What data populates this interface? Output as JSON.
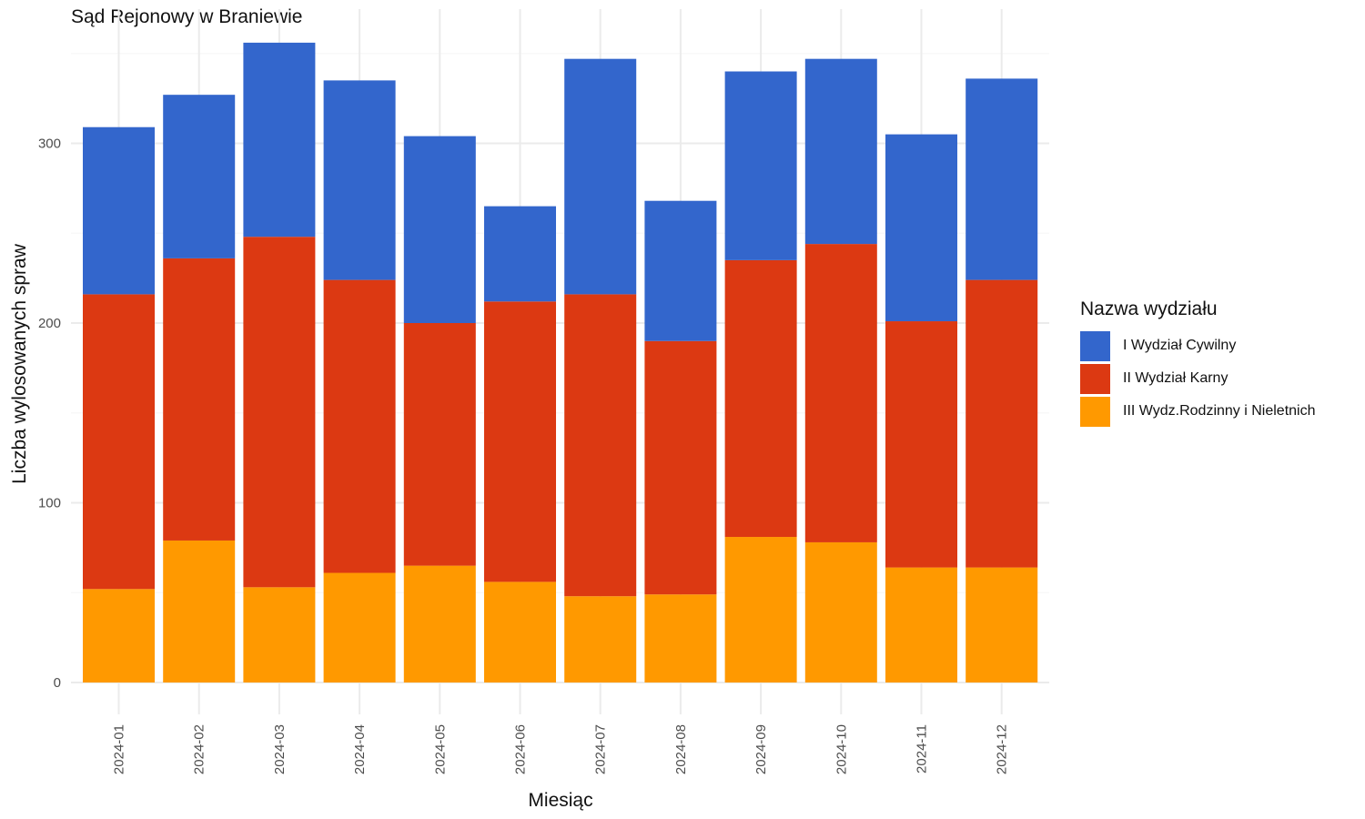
{
  "chart_data": {
    "type": "bar",
    "stacked": true,
    "title": "Sąd Rejonowy w Braniewie",
    "xlabel": "Miesiąc",
    "ylabel": "Liczba wylosowanych spraw",
    "ylim": [
      0,
      375
    ],
    "yticks": [
      0,
      100,
      200,
      300
    ],
    "grid": true,
    "legend_position": "right",
    "legend_title": "Nazwa wydziału",
    "categories": [
      "2024-01",
      "2024-02",
      "2024-03",
      "2024-04",
      "2024-05",
      "2024-06",
      "2024-07",
      "2024-08",
      "2024-09",
      "2024-10",
      "2024-11",
      "2024-12"
    ],
    "series": [
      {
        "name": "I Wydział Cywilny",
        "color": "#3366cc",
        "values": [
          93,
          91,
          108,
          111,
          104,
          53,
          131,
          78,
          105,
          103,
          104,
          112
        ]
      },
      {
        "name": "II Wydział Karny",
        "color": "#dc3912",
        "values": [
          164,
          157,
          195,
          163,
          135,
          156,
          168,
          141,
          154,
          166,
          137,
          160
        ]
      },
      {
        "name": "III Wydz.Rodzinny i Nieletnich",
        "color": "#ff9900",
        "values": [
          52,
          79,
          53,
          61,
          65,
          56,
          48,
          49,
          81,
          78,
          64,
          64
        ]
      }
    ]
  }
}
